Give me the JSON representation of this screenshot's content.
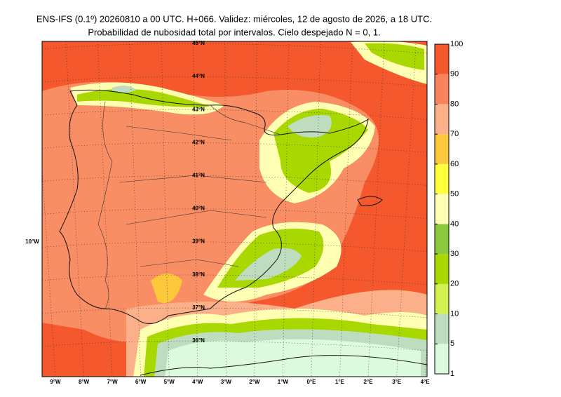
{
  "header": {
    "title": "ENS-IFS (0.1º) 20260810 a 00 UTC. H+066. Validez: miércoles, 12 de agosto de 2026, a 18 UTC.",
    "subtitle": "Probabilidad de nubosidad total por intervalos. Cielo despejado N = 0, 1."
  },
  "map": {
    "lat_labels": [
      "45°N",
      "44°N",
      "43°N",
      "42°N",
      "41°N",
      "40°N",
      "39°N",
      "38°N",
      "37°N",
      "36°N"
    ],
    "lon_labels": [
      "9°W",
      "8°W",
      "7°W",
      "6°W",
      "5°W",
      "4°W",
      "3°W",
      "2°W",
      "1°W",
      "0°E",
      "1°E",
      "2°E",
      "3°E",
      "4°E"
    ],
    "west_label": "10°W"
  },
  "colorbar": {
    "ticks": [
      1,
      5,
      10,
      20,
      30,
      40,
      50,
      60,
      70,
      80,
      90,
      100
    ],
    "colors": [
      "#dcfadc",
      "#bedcbe",
      "#d2f050",
      "#a8d800",
      "#8cc83c",
      "#ffffb4",
      "#ffff3c",
      "#fbc83c",
      "#fbb08a",
      "#f7845c",
      "#f4582c"
    ]
  }
}
